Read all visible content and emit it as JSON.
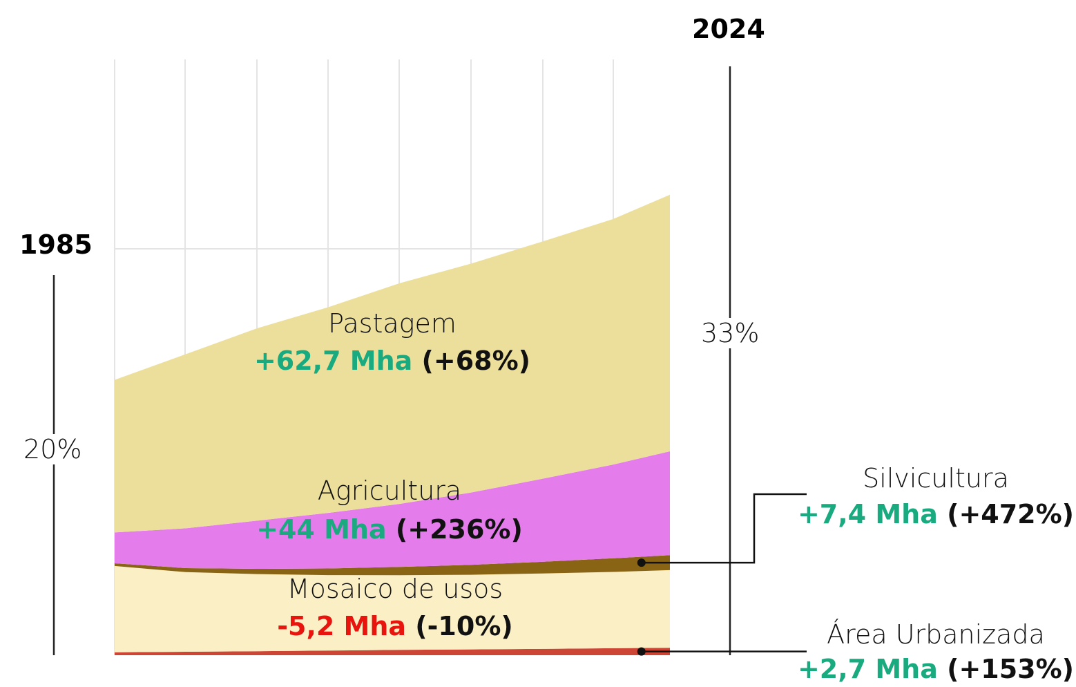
{
  "colors": {
    "positive": "#1aaa7f",
    "negative": "#e8150f",
    "pastagem": "#ecdf9c",
    "agricultura": "#e47cec",
    "silvicultura": "#8a6415",
    "mosaico": "#fbefc6",
    "urbanizada": "#cc4535",
    "grid": "#e4e4e4",
    "axis": "#222222"
  },
  "axis_labels": {
    "start_year": "1985",
    "end_year": "2024",
    "start_total": "20%",
    "end_total": "33%"
  },
  "chart_data": {
    "type": "area",
    "x": [
      1985,
      1990,
      1995,
      2000,
      2005,
      2010,
      2015,
      2020,
      2024
    ],
    "x_range": [
      1985,
      2024
    ],
    "stacking": "stacked",
    "total_share_start": 20,
    "total_share_end": 33,
    "series": [
      {
        "name": "Área Urbanizada",
        "key": "urbanizada",
        "change_mha": "+2,7 Mha",
        "change_pct": "(+153%)",
        "direction": "up",
        "values": [
          1.8,
          2.1,
          2.4,
          2.8,
          3.2,
          3.5,
          3.8,
          4.2,
          4.5
        ]
      },
      {
        "name": "Mosaico de usos",
        "key": "mosaico",
        "change_mha": "-5,2 Mha",
        "change_pct": "(-10%)",
        "direction": "down",
        "values": [
          52.0,
          48.0,
          46.5,
          45.5,
          45.0,
          45.0,
          45.5,
          46.0,
          46.8
        ]
      },
      {
        "name": "Silvicultura",
        "key": "silvicultura",
        "change_mha": "+7,4 Mha",
        "change_pct": "(+472%)",
        "direction": "up",
        "values": [
          1.6,
          2.4,
          3.2,
          4.0,
          5.0,
          6.0,
          7.0,
          8.2,
          9.0
        ]
      },
      {
        "name": "Agricultura",
        "key": "agricultura",
        "change_mha": "+44 Mha",
        "change_pct": "(+236%)",
        "direction": "up",
        "values": [
          18.6,
          24.0,
          29.0,
          33.5,
          38.0,
          43.5,
          50.0,
          56.5,
          62.6
        ]
      },
      {
        "name": "Pastagem",
        "key": "pastagem",
        "change_mha": "+62,7 Mha",
        "change_pct": "(+68%)",
        "direction": "up",
        "values": [
          92.0,
          105.0,
          116.0,
          124.0,
          133.0,
          138.0,
          143.0,
          148.0,
          154.7
        ]
      }
    ],
    "grid": true,
    "legend": "inline labels"
  }
}
